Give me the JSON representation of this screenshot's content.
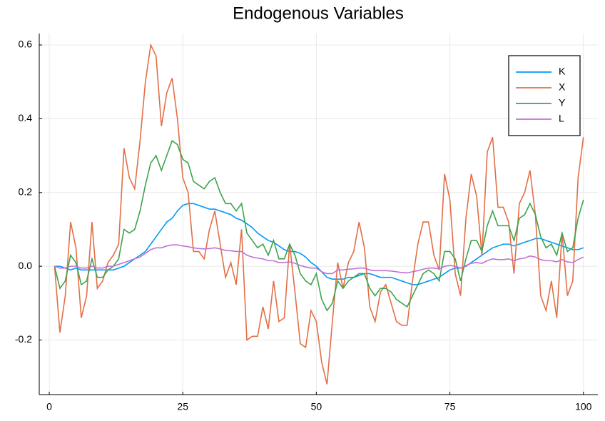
{
  "chart_data": {
    "type": "line",
    "title": "Endogenous Variables",
    "x": [
      1,
      2,
      3,
      4,
      5,
      6,
      7,
      8,
      9,
      10,
      11,
      12,
      13,
      14,
      15,
      16,
      17,
      18,
      19,
      20,
      21,
      22,
      23,
      24,
      25,
      26,
      27,
      28,
      29,
      30,
      31,
      32,
      33,
      34,
      35,
      36,
      37,
      38,
      39,
      40,
      41,
      42,
      43,
      44,
      45,
      46,
      47,
      48,
      49,
      50,
      51,
      52,
      53,
      54,
      55,
      56,
      57,
      58,
      59,
      60,
      61,
      62,
      63,
      64,
      65,
      66,
      67,
      68,
      69,
      70,
      71,
      72,
      73,
      74,
      75,
      76,
      77,
      78,
      79,
      80,
      81,
      82,
      83,
      84,
      85,
      86,
      87,
      88,
      89,
      90,
      91,
      92,
      93,
      94,
      95,
      96,
      97,
      98,
      99,
      100
    ],
    "series": [
      {
        "name": "K",
        "color": "#009af9",
        "values": [
          0,
          0,
          -0.005,
          -0.01,
          -0.005,
          -0.01,
          -0.01,
          -0.01,
          -0.01,
          -0.01,
          -0.01,
          -0.01,
          -0.005,
          0,
          0.01,
          0.02,
          0.03,
          0.04,
          0.06,
          0.08,
          0.1,
          0.12,
          0.13,
          0.15,
          0.165,
          0.17,
          0.17,
          0.165,
          0.16,
          0.155,
          0.155,
          0.15,
          0.145,
          0.14,
          0.13,
          0.125,
          0.115,
          0.105,
          0.09,
          0.08,
          0.07,
          0.065,
          0.055,
          0.045,
          0.04,
          0.04,
          0.035,
          0.025,
          0.01,
          0,
          -0.015,
          -0.03,
          -0.035,
          -0.035,
          -0.035,
          -0.03,
          -0.03,
          -0.025,
          -0.02,
          -0.02,
          -0.025,
          -0.03,
          -0.03,
          -0.03,
          -0.035,
          -0.04,
          -0.045,
          -0.05,
          -0.05,
          -0.045,
          -0.04,
          -0.035,
          -0.03,
          -0.02,
          -0.01,
          -0.005,
          -0.005,
          0,
          0.01,
          0.02,
          0.03,
          0.04,
          0.05,
          0.055,
          0.06,
          0.06,
          0.055,
          0.06,
          0.065,
          0.07,
          0.075,
          0.075,
          0.07,
          0.065,
          0.06,
          0.055,
          0.05,
          0.045,
          0.045,
          0.05
        ]
      },
      {
        "name": "X",
        "color": "#e26f46",
        "values": [
          0,
          -0.18,
          -0.08,
          0.12,
          0.05,
          -0.14,
          -0.08,
          0.12,
          -0.06,
          -0.04,
          0.01,
          0.03,
          0.06,
          0.32,
          0.24,
          0.21,
          0.34,
          0.5,
          0.6,
          0.57,
          0.38,
          0.47,
          0.51,
          0.4,
          0.24,
          0.2,
          0.04,
          0.04,
          0.02,
          0.1,
          0.15,
          0.06,
          -0.03,
          0.01,
          -0.05,
          0.1,
          -0.2,
          -0.19,
          -0.19,
          -0.11,
          -0.17,
          -0.04,
          -0.15,
          -0.14,
          0.06,
          -0.07,
          -0.21,
          -0.22,
          -0.12,
          -0.15,
          -0.26,
          -0.32,
          -0.15,
          0.01,
          -0.06,
          0.01,
          0.04,
          0.12,
          0.05,
          -0.11,
          -0.15,
          -0.07,
          -0.05,
          -0.1,
          -0.15,
          -0.16,
          -0.16,
          -0.04,
          0.06,
          0.12,
          0.12,
          0.03,
          -0.01,
          0.25,
          0.18,
          -0.02,
          -0.08,
          0.13,
          0.25,
          0.19,
          0.03,
          0.31,
          0.35,
          0.16,
          0.16,
          0.12,
          -0.02,
          0.17,
          0.2,
          0.26,
          0.14,
          -0.08,
          -0.12,
          -0.04,
          -0.14,
          0.09,
          -0.08,
          -0.04,
          0.24,
          0.35
        ]
      },
      {
        "name": "Y",
        "color": "#3da44d",
        "values": [
          0,
          -0.06,
          -0.04,
          0.03,
          0.01,
          -0.05,
          -0.04,
          0.02,
          -0.03,
          -0.03,
          -0.01,
          0,
          0.02,
          0.1,
          0.09,
          0.1,
          0.15,
          0.22,
          0.28,
          0.3,
          0.26,
          0.3,
          0.34,
          0.33,
          0.29,
          0.28,
          0.23,
          0.22,
          0.21,
          0.23,
          0.24,
          0.2,
          0.17,
          0.17,
          0.15,
          0.17,
          0.09,
          0.07,
          0.05,
          0.06,
          0.03,
          0.07,
          0.02,
          0.02,
          0.06,
          0.03,
          -0.02,
          -0.04,
          -0.05,
          -0.02,
          -0.09,
          -0.12,
          -0.1,
          -0.04,
          -0.06,
          -0.04,
          -0.03,
          -0.02,
          -0.02,
          -0.06,
          -0.08,
          -0.06,
          -0.06,
          -0.07,
          -0.09,
          -0.1,
          -0.11,
          -0.08,
          -0.05,
          -0.02,
          -0.01,
          -0.02,
          -0.04,
          0.04,
          0.04,
          0.02,
          -0.04,
          0.02,
          0.07,
          0.07,
          0.04,
          0.11,
          0.15,
          0.11,
          0.11,
          0.11,
          0.07,
          0.13,
          0.14,
          0.17,
          0.14,
          0.08,
          0.05,
          0.06,
          0.03,
          0.09,
          0.04,
          0.05,
          0.13,
          0.18
        ]
      },
      {
        "name": "L",
        "color": "#c271d2",
        "values": [
          0,
          -0.005,
          -0.005,
          0,
          0,
          -0.005,
          -0.005,
          0,
          -0.005,
          -0.005,
          0,
          0,
          0.005,
          0.01,
          0.015,
          0.02,
          0.025,
          0.035,
          0.045,
          0.05,
          0.05,
          0.055,
          0.058,
          0.058,
          0.055,
          0.053,
          0.05,
          0.048,
          0.047,
          0.048,
          0.05,
          0.047,
          0.043,
          0.042,
          0.04,
          0.04,
          0.03,
          0.025,
          0.022,
          0.02,
          0.015,
          0.015,
          0.01,
          0.01,
          0.012,
          0.008,
          0.002,
          -0.002,
          -0.005,
          -0.005,
          -0.015,
          -0.02,
          -0.02,
          -0.01,
          -0.01,
          -0.008,
          -0.007,
          -0.005,
          -0.005,
          -0.01,
          -0.012,
          -0.012,
          -0.012,
          -0.013,
          -0.015,
          -0.017,
          -0.018,
          -0.015,
          -0.012,
          -0.008,
          -0.005,
          -0.005,
          -0.007,
          0,
          0.002,
          0,
          -0.005,
          0.002,
          0.008,
          0.01,
          0.008,
          0.015,
          0.02,
          0.018,
          0.018,
          0.02,
          0.015,
          0.02,
          0.022,
          0.028,
          0.025,
          0.018,
          0.015,
          0.015,
          0.012,
          0.018,
          0.012,
          0.01,
          0.018,
          0.025
        ]
      }
    ],
    "xlim": [
      -1.87,
      102.7
    ],
    "xticks": [
      0,
      25,
      50,
      75,
      100
    ],
    "ylim": [
      -0.348,
      0.631
    ],
    "yticks": [
      -0.2,
      {
        "value": 0,
        "label": "0.0"
      },
      0.2,
      0.4,
      0.6
    ],
    "grid": true,
    "legend": "top right"
  }
}
